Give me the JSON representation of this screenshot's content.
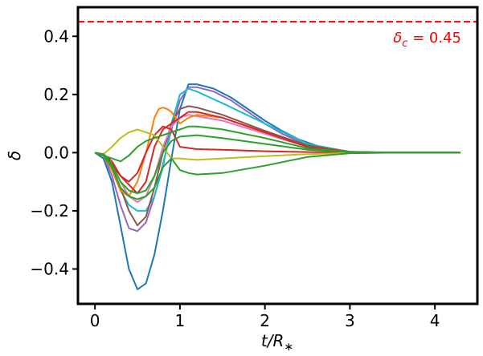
{
  "chart_data": {
    "type": "line",
    "title": "",
    "xlabel": "t/R∗",
    "xlabel_main": "t/R",
    "xlabel_sub": "∗",
    "ylabel": "δ",
    "xlim": [
      -0.2,
      4.5
    ],
    "ylim": [
      -0.52,
      0.5
    ],
    "xticks": [
      0,
      1,
      2,
      3,
      4
    ],
    "xtick_labels": [
      "0",
      "1",
      "2",
      "3",
      "4"
    ],
    "yticks": [
      -0.4,
      -0.2,
      0.0,
      0.2,
      0.4
    ],
    "ytick_labels": [
      "−0.4",
      "−0.2",
      "0.0",
      "0.2",
      "0.4"
    ],
    "grid": false,
    "threshold": {
      "value": 0.45,
      "color": "#ff0000",
      "style": "dashed",
      "label": "δc = 0.45",
      "label_main": "δ",
      "label_sub": "c",
      "label_rest": " = 0.45"
    },
    "series": [
      {
        "color": "#1f77b4",
        "x": [
          0,
          0.1,
          0.2,
          0.3,
          0.4,
          0.5,
          0.6,
          0.7,
          0.8,
          0.9,
          1.0,
          1.1,
          1.2,
          1.4,
          1.6,
          1.8,
          2.0,
          2.2,
          2.4,
          2.6,
          2.8,
          3.0,
          3.2,
          3.5,
          4.3
        ],
        "y": [
          0,
          -0.02,
          -0.1,
          -0.25,
          -0.4,
          -0.47,
          -0.45,
          -0.35,
          -0.2,
          -0.02,
          0.15,
          0.235,
          0.235,
          0.22,
          0.19,
          0.15,
          0.11,
          0.075,
          0.045,
          0.025,
          0.01,
          0.003,
          0,
          0,
          0
        ]
      },
      {
        "color": "#9467bd",
        "x": [
          0,
          0.1,
          0.2,
          0.3,
          0.4,
          0.5,
          0.6,
          0.7,
          0.8,
          0.9,
          1.0,
          1.1,
          1.2,
          1.4,
          1.6,
          1.8,
          2.0,
          2.2,
          2.4,
          2.6,
          2.8,
          3.0,
          3.2,
          3.5,
          4.3
        ],
        "y": [
          0,
          -0.01,
          -0.08,
          -0.18,
          -0.26,
          -0.27,
          -0.24,
          -0.15,
          -0.04,
          0.08,
          0.18,
          0.225,
          0.225,
          0.21,
          0.18,
          0.14,
          0.1,
          0.065,
          0.04,
          0.02,
          0.008,
          0.002,
          0,
          0,
          0
        ]
      },
      {
        "color": "#17becf",
        "x": [
          0,
          0.1,
          0.2,
          0.3,
          0.4,
          0.5,
          0.6,
          0.7,
          0.8,
          0.9,
          1.0,
          1.1,
          1.2,
          1.5,
          2.0,
          2.5,
          3.0,
          3.5,
          4.3
        ],
        "y": [
          0,
          -0.01,
          -0.06,
          -0.13,
          -0.18,
          -0.2,
          -0.2,
          -0.15,
          -0.05,
          0.1,
          0.2,
          0.22,
          0.21,
          0.17,
          0.1,
          0.03,
          0.003,
          0,
          0
        ]
      },
      {
        "color": "#8c564b",
        "x": [
          0,
          0.1,
          0.2,
          0.3,
          0.4,
          0.5,
          0.6,
          0.7,
          0.8,
          0.9,
          1.0,
          1.1,
          1.2,
          1.5,
          2.0,
          2.5,
          3.0,
          3.5,
          4.3
        ],
        "y": [
          0,
          -0.01,
          -0.05,
          -0.12,
          -0.2,
          -0.25,
          -0.22,
          -0.12,
          0,
          0.1,
          0.15,
          0.16,
          0.155,
          0.13,
          0.075,
          0.025,
          0.003,
          0,
          0
        ]
      },
      {
        "color": "#e377c2",
        "x": [
          0,
          0.1,
          0.2,
          0.3,
          0.4,
          0.5,
          0.6,
          0.7,
          0.8,
          0.9,
          1.0,
          1.1,
          1.2,
          1.5,
          2.0,
          2.5,
          3.0,
          3.5,
          4.3
        ],
        "y": [
          0,
          -0.01,
          -0.04,
          -0.1,
          -0.15,
          -0.17,
          -0.15,
          -0.08,
          0.02,
          0.09,
          0.12,
          0.13,
          0.125,
          0.11,
          0.065,
          0.02,
          0.002,
          0,
          0
        ]
      },
      {
        "color": "#ff7f0e",
        "x": [
          0,
          0.1,
          0.2,
          0.3,
          0.4,
          0.5,
          0.6,
          0.7,
          0.75,
          0.8,
          0.85,
          0.9,
          1.0,
          1.1,
          1.2,
          1.5,
          2.0,
          2.5,
          3.0,
          3.5,
          4.3
        ],
        "y": [
          0,
          -0.01,
          -0.06,
          -0.13,
          -0.15,
          -0.1,
          0,
          0.12,
          0.15,
          0.155,
          0.15,
          0.14,
          0.1,
          0.12,
          0.13,
          0.12,
          0.07,
          0.02,
          0.002,
          0,
          0
        ]
      },
      {
        "color": "#d62728",
        "x": [
          0,
          0.1,
          0.2,
          0.3,
          0.4,
          0.5,
          0.6,
          0.7,
          0.8,
          0.9,
          1.0,
          1.1,
          1.2,
          1.5,
          2.0,
          2.5,
          3.0,
          3.5,
          4.3
        ],
        "y": [
          0,
          -0.01,
          -0.04,
          -0.08,
          -0.11,
          -0.14,
          -0.1,
          0.02,
          0.08,
          0.1,
          0.12,
          0.14,
          0.14,
          0.12,
          0.07,
          0.02,
          0.002,
          0,
          0
        ]
      },
      {
        "color": "#d62728",
        "x": [
          0,
          0.1,
          0.2,
          0.3,
          0.4,
          0.5,
          0.6,
          0.7,
          0.8,
          0.9,
          1.0,
          1.2,
          1.5,
          2.0,
          2.5,
          3.0,
          3.5,
          4.3
        ],
        "y": [
          0,
          -0.005,
          -0.03,
          -0.08,
          -0.1,
          -0.07,
          0,
          0.06,
          0.09,
          0.08,
          0.02,
          0.012,
          0.01,
          0.005,
          0.002,
          0,
          0,
          0
        ]
      },
      {
        "color": "#bcbd22",
        "x": [
          0,
          0.1,
          0.2,
          0.3,
          0.4,
          0.5,
          0.6,
          0.7,
          0.8,
          0.9,
          1.0,
          1.2,
          1.5,
          2.0,
          2.5,
          3.0,
          3.5,
          4.3
        ],
        "y": [
          0,
          -0.005,
          0.02,
          0.05,
          0.07,
          0.08,
          0.07,
          0.06,
          0.02,
          -0.02,
          -0.02,
          -0.025,
          -0.02,
          -0.012,
          -0.005,
          -0.001,
          0,
          0
        ]
      },
      {
        "color": "#2ca02c",
        "x": [
          0,
          0.1,
          0.2,
          0.3,
          0.4,
          0.5,
          0.6,
          0.7,
          0.8,
          0.9,
          1.0,
          1.1,
          1.2,
          1.5,
          2.0,
          2.5,
          3.0,
          3.5,
          4.3
        ],
        "y": [
          0,
          -0.01,
          -0.02,
          -0.03,
          -0.01,
          0.02,
          0.04,
          0.05,
          0.06,
          0.07,
          0.08,
          0.09,
          0.09,
          0.08,
          0.05,
          0.015,
          0.002,
          0,
          0
        ]
      },
      {
        "color": "#2ca02c",
        "x": [
          0,
          0.1,
          0.2,
          0.3,
          0.4,
          0.5,
          0.6,
          0.7,
          0.8,
          0.9,
          1.0,
          1.2,
          1.5,
          2.0,
          2.5,
          3.0,
          3.5,
          4.3
        ],
        "y": [
          0,
          -0.005,
          -0.04,
          -0.1,
          -0.13,
          -0.14,
          -0.13,
          -0.08,
          0,
          0.04,
          0.055,
          0.06,
          0.05,
          0.03,
          0.01,
          0.002,
          0,
          0
        ]
      },
      {
        "color": "#2ca02c",
        "x": [
          0,
          0.1,
          0.2,
          0.3,
          0.4,
          0.5,
          0.6,
          0.7,
          0.8,
          0.9,
          1.0,
          1.1,
          1.2,
          1.5,
          2.0,
          2.5,
          3.0,
          3.5,
          4.3
        ],
        "y": [
          0,
          -0.01,
          -0.05,
          -0.12,
          -0.15,
          -0.16,
          -0.15,
          -0.12,
          -0.05,
          -0.02,
          -0.06,
          -0.07,
          -0.075,
          -0.07,
          -0.045,
          -0.015,
          -0.002,
          0,
          0
        ]
      }
    ]
  }
}
